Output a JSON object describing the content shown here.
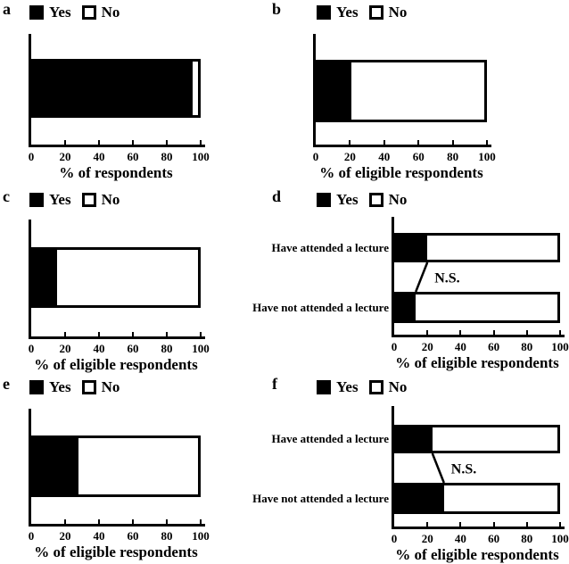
{
  "legend": {
    "yes_label": "Yes",
    "no_label": "No"
  },
  "colors": {
    "yes": "#000000",
    "no": "#ffffff",
    "axis": "#000000",
    "background": "#ffffff"
  },
  "chart_data": [
    {
      "panel_letter": "a",
      "type": "bar",
      "orientation": "horizontal",
      "stacked": true,
      "categories": [
        ""
      ],
      "series": [
        {
          "name": "Yes",
          "values": [
            95
          ]
        },
        {
          "name": "No",
          "values": [
            5
          ]
        }
      ],
      "xlabel": "% of respondents",
      "xticks": [
        0,
        20,
        40,
        60,
        80,
        100
      ],
      "xlim": [
        0,
        100
      ],
      "legend_entries": [
        "Yes",
        "No"
      ],
      "legend_position": "top"
    },
    {
      "panel_letter": "b",
      "type": "bar",
      "orientation": "horizontal",
      "stacked": true,
      "categories": [
        ""
      ],
      "series": [
        {
          "name": "Yes",
          "values": [
            21
          ]
        },
        {
          "name": "No",
          "values": [
            79
          ]
        }
      ],
      "xlabel": "% of eligible respondents",
      "xticks": [
        0,
        20,
        40,
        60,
        80,
        100
      ],
      "xlim": [
        0,
        100
      ],
      "legend_entries": [
        "Yes",
        "No"
      ],
      "legend_position": "top"
    },
    {
      "panel_letter": "c",
      "type": "bar",
      "orientation": "horizontal",
      "stacked": true,
      "categories": [
        ""
      ],
      "series": [
        {
          "name": "Yes",
          "values": [
            15
          ]
        },
        {
          "name": "No",
          "values": [
            85
          ]
        }
      ],
      "xlabel": "% of eligible respondents",
      "xticks": [
        0,
        20,
        40,
        60,
        80,
        100
      ],
      "xlim": [
        0,
        100
      ],
      "legend_entries": [
        "Yes",
        "No"
      ],
      "legend_position": "top"
    },
    {
      "panel_letter": "d",
      "type": "bar",
      "orientation": "horizontal",
      "stacked": true,
      "categories": [
        "Have attended a lecture",
        "Have not attended a lecture"
      ],
      "series": [
        {
          "name": "Yes",
          "values": [
            20,
            13
          ]
        },
        {
          "name": "No",
          "values": [
            80,
            87
          ]
        }
      ],
      "annotation": "N.S.",
      "xlabel": "% of eligible respondents",
      "xticks": [
        0,
        20,
        40,
        60,
        80,
        100
      ],
      "xlim": [
        0,
        100
      ],
      "legend_entries": [
        "Yes",
        "No"
      ],
      "legend_position": "top"
    },
    {
      "panel_letter": "e",
      "type": "bar",
      "orientation": "horizontal",
      "stacked": true,
      "categories": [
        ""
      ],
      "series": [
        {
          "name": "Yes",
          "values": [
            28
          ]
        },
        {
          "name": "No",
          "values": [
            72
          ]
        }
      ],
      "xlabel": "% of eligible respondents",
      "xticks": [
        0,
        20,
        40,
        60,
        80,
        100
      ],
      "xlim": [
        0,
        100
      ],
      "legend_entries": [
        "Yes",
        "No"
      ],
      "legend_position": "top"
    },
    {
      "panel_letter": "f",
      "type": "bar",
      "orientation": "horizontal",
      "stacked": true,
      "categories": [
        "Have attended a lecture",
        "Have not attended a lecture"
      ],
      "series": [
        {
          "name": "Yes",
          "values": [
            23,
            30
          ]
        },
        {
          "name": "No",
          "values": [
            77,
            70
          ]
        }
      ],
      "annotation": "N.S.",
      "xlabel": "% of eligible respondents",
      "xticks": [
        0,
        20,
        40,
        60,
        80,
        100
      ],
      "xlim": [
        0,
        100
      ],
      "legend_entries": [
        "Yes",
        "No"
      ],
      "legend_position": "top"
    }
  ]
}
